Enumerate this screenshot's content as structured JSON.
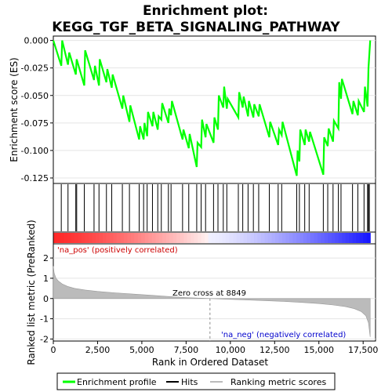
{
  "chart_data": {
    "type": "line",
    "title_line1": "Enrichment plot:",
    "title_line2": "KEGG_TGF_BETA_SIGNALING_PATHWAY",
    "top_panel": {
      "ylabel": "Enrichment score (ES)",
      "ylim": [
        -0.13,
        0.004
      ],
      "yticks": [
        0.0,
        -0.025,
        -0.05,
        -0.075,
        -0.1,
        -0.125
      ],
      "ytick_labels": [
        "0.000",
        "-0.025",
        "-0.050",
        "-0.075",
        "-0.100",
        "-0.125"
      ],
      "series": [
        {
          "name": "Enrichment profile",
          "color": "#00ff00",
          "x": [
            0,
            450,
            500,
            830,
            900,
            1270,
            1320,
            1750,
            1800,
            2300,
            2350,
            2580,
            2620,
            3000,
            3050,
            3300,
            3350,
            3900,
            3950,
            4300,
            4350,
            4850,
            4900,
            5100,
            5150,
            5300,
            5350,
            5600,
            5650,
            5900,
            5950,
            6100,
            6150,
            6500,
            6550,
            6650,
            6700,
            7300,
            7350,
            7650,
            7700,
            8100,
            8150,
            8350,
            8400,
            8600,
            8650,
            9050,
            9100,
            9300,
            9350,
            9600,
            9650,
            9800,
            9850,
            10450,
            10500,
            10700,
            10750,
            11000,
            11050,
            11300,
            11350,
            11600,
            11650,
            12200,
            12250,
            12700,
            12750,
            12900,
            12950,
            13750,
            13800,
            13900,
            13950,
            14200,
            14250,
            14450,
            14500,
            15250,
            15300,
            15500,
            15550,
            15800,
            15850,
            16100,
            16150,
            16250,
            16300,
            16900,
            16950,
            17200,
            17250,
            17550,
            17600,
            17750,
            17800,
            17900
          ],
          "y": [
            0.0,
            -0.023,
            0.0,
            -0.022,
            -0.011,
            -0.031,
            -0.017,
            -0.041,
            -0.009,
            -0.036,
            -0.023,
            -0.041,
            -0.017,
            -0.038,
            -0.026,
            -0.043,
            -0.031,
            -0.062,
            -0.05,
            -0.074,
            -0.059,
            -0.09,
            -0.078,
            -0.09,
            -0.075,
            -0.087,
            -0.065,
            -0.078,
            -0.065,
            -0.081,
            -0.069,
            -0.072,
            -0.057,
            -0.075,
            -0.062,
            -0.068,
            -0.055,
            -0.09,
            -0.081,
            -0.098,
            -0.085,
            -0.115,
            -0.093,
            -0.097,
            -0.072,
            -0.088,
            -0.076,
            -0.093,
            -0.07,
            -0.081,
            -0.05,
            -0.061,
            -0.042,
            -0.062,
            -0.053,
            -0.07,
            -0.047,
            -0.061,
            -0.051,
            -0.069,
            -0.055,
            -0.07,
            -0.058,
            -0.069,
            -0.058,
            -0.088,
            -0.074,
            -0.095,
            -0.081,
            -0.086,
            -0.074,
            -0.123,
            -0.1,
            -0.11,
            -0.081,
            -0.095,
            -0.081,
            -0.092,
            -0.083,
            -0.122,
            -0.088,
            -0.096,
            -0.08,
            -0.092,
            -0.073,
            -0.08,
            -0.038,
            -0.053,
            -0.035,
            -0.067,
            -0.055,
            -0.068,
            -0.055,
            -0.065,
            -0.042,
            -0.06,
            -0.025,
            0.0
          ]
        }
      ]
    },
    "hits": {
      "name": "Hits",
      "color": "#000000",
      "x": [
        450,
        830,
        1270,
        1320,
        1750,
        2300,
        2580,
        3000,
        3300,
        3900,
        4300,
        4850,
        5100,
        5300,
        5600,
        5900,
        6100,
        6500,
        6650,
        7300,
        7650,
        8100,
        8350,
        8600,
        9050,
        9300,
        9600,
        9800,
        10450,
        10700,
        11000,
        11300,
        11600,
        12200,
        12700,
        12900,
        13750,
        13900,
        14200,
        14450,
        15250,
        15500,
        15800,
        16100,
        16250,
        16900,
        17200,
        17550,
        17750,
        17800,
        17850
      ]
    },
    "heatmap": {
      "pos_label": "'na_pos' (positively correlated)",
      "neg_label": "'na_neg' (negatively correlated)",
      "pos_color": "#ff0000",
      "neg_color": "#0000ff"
    },
    "bottom_panel": {
      "ylabel": "Ranked list metric (PreRanked)",
      "xlabel": "Rank in Ordered Dataset",
      "ylim": [
        -2.1,
        2.7
      ],
      "yticks": [
        2,
        1,
        0,
        -1,
        -2
      ],
      "xticks": [
        0,
        2500,
        5000,
        7500,
        10000,
        12500,
        15000,
        17500
      ],
      "xtick_labels": [
        "0",
        "2,500",
        "5,000",
        "7,500",
        "10,000",
        "12,500",
        "15,000",
        "17,500"
      ],
      "xlim": [
        0,
        18200
      ],
      "zero_cross_label": "Zero cross at 8849",
      "zero_cross": 8849,
      "metric_x": [
        0,
        50,
        150,
        300,
        500,
        800,
        1200,
        1800,
        2500,
        3500,
        4500,
        5500,
        6500,
        7500,
        8849,
        10000,
        11500,
        13000,
        14000,
        15000,
        15800,
        16500,
        17000,
        17400,
        17650,
        17800,
        17900
      ],
      "metric_y": [
        1.6,
        1.25,
        1.0,
        0.85,
        0.72,
        0.6,
        0.5,
        0.42,
        0.35,
        0.28,
        0.22,
        0.16,
        0.1,
        0.05,
        0.0,
        -0.04,
        -0.09,
        -0.14,
        -0.19,
        -0.25,
        -0.32,
        -0.4,
        -0.5,
        -0.65,
        -0.85,
        -1.2,
        -1.9
      ]
    },
    "legend": [
      {
        "label": "Enrichment profile",
        "color": "#00ff00"
      },
      {
        "label": "Hits",
        "color": "#000000"
      },
      {
        "label": "Ranking metric scores",
        "color": "#bbbbbb"
      }
    ]
  }
}
